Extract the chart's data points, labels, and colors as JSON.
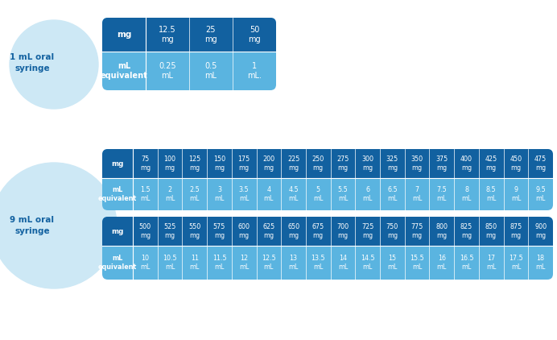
{
  "background_color": "#ffffff",
  "dark_blue": "#1261a0",
  "light_blue": "#5ab4e0",
  "circle_color": "#cde8f5",
  "table1": {
    "mg_values": [
      "12.5\nmg",
      "25\nmg",
      "50\nmg"
    ],
    "ml_values": [
      "0.25\nmL",
      "0.5\nmL",
      "1\nmL."
    ]
  },
  "table2a": {
    "mg_values": [
      "75\nmg",
      "100\nmg",
      "125\nmg",
      "150\nmg",
      "175\nmg",
      "200\nmg",
      "225\nmg",
      "250\nmg",
      "275\nmg",
      "300\nmg",
      "325\nmg",
      "350\nmg",
      "375\nmg",
      "400\nmg",
      "425\nmg",
      "450\nmg",
      "475\nmg"
    ],
    "ml_values": [
      "1.5\nmL",
      "2\nmL",
      "2.5\nmL",
      "3\nmL",
      "3.5\nmL",
      "4\nmL",
      "4.5\nmL",
      "5\nmL",
      "5.5\nmL",
      "6\nmL",
      "6.5\nmL",
      "7\nmL",
      "7.5\nmL",
      "8\nmL",
      "8.5\nmL",
      "9\nmL",
      "9.5\nmL"
    ]
  },
  "table2b": {
    "mg_values": [
      "500\nmg",
      "525\nmg",
      "550\nmg",
      "575\nmg",
      "600\nmg",
      "625\nmg",
      "650\nmg",
      "675\nmg",
      "700\nmg",
      "725\nmg",
      "750\nmg",
      "775\nmg",
      "800\nmg",
      "825\nmg",
      "850\nmg",
      "875\nmg",
      "900\nmg"
    ],
    "ml_values": [
      "10\nmL",
      "10.5\nmL",
      "11\nmL",
      "11.5\nmL",
      "12\nmL",
      "12.5\nmL",
      "13\nmL",
      "13.5\nmL",
      "14\nmL",
      "14.5\nmL",
      "15\nmL",
      "15.5\nmL",
      "16\nmL",
      "16.5\nmL",
      "17\nmL",
      "17.5\nmL",
      "18\nmL"
    ]
  }
}
